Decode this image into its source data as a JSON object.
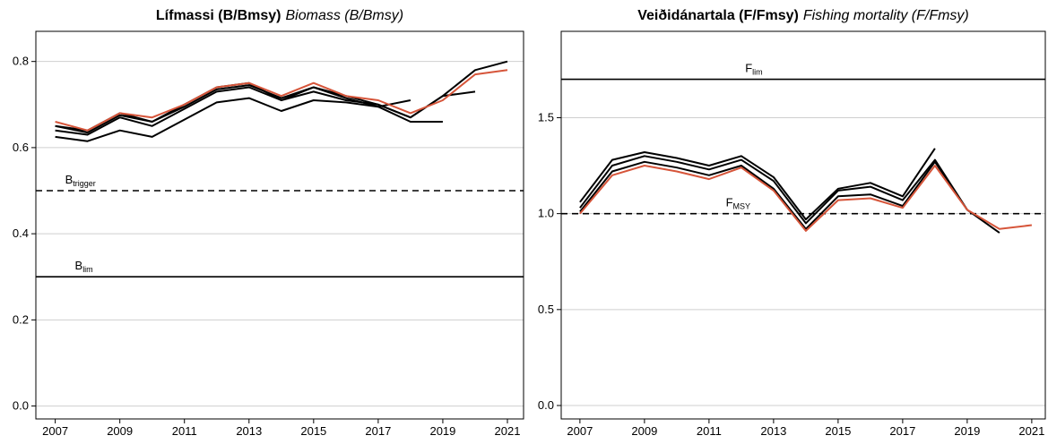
{
  "chart_data": [
    {
      "type": "line",
      "title": "Lífmassi (B/Bmsy)",
      "subtitle": "Biomass (B/Bmsy)",
      "x": [
        2007,
        2008,
        2009,
        2010,
        2011,
        2012,
        2013,
        2014,
        2015,
        2016,
        2017,
        2018,
        2019,
        2020,
        2021
      ],
      "xlim": [
        2006.4,
        2021.5
      ],
      "xticks": [
        2007,
        2009,
        2011,
        2013,
        2015,
        2017,
        2019,
        2021
      ],
      "ylim": [
        -0.03,
        0.87
      ],
      "yticks": [
        {
          "value": 0,
          "label": "0.0"
        },
        0.2,
        0.4,
        0.6,
        0.8
      ],
      "grid": true,
      "series": [
        {
          "color": "#000000",
          "values": [
            0.65,
            0.635,
            0.675,
            0.66,
            0.695,
            0.735,
            0.745,
            0.715,
            0.74,
            0.715,
            0.695,
            0.71,
            null,
            null,
            null
          ]
        },
        {
          "color": "#000000",
          "values": [
            0.625,
            0.615,
            0.64,
            0.625,
            0.665,
            0.705,
            0.715,
            0.685,
            0.71,
            0.705,
            0.695,
            0.66,
            0.66,
            null,
            null
          ]
        },
        {
          "color": "#000000",
          "values": [
            0.64,
            0.63,
            0.67,
            0.65,
            0.69,
            0.73,
            0.74,
            0.71,
            0.73,
            0.71,
            0.7,
            0.67,
            0.72,
            0.73,
            null
          ]
        },
        {
          "color": "#000000",
          "values": [
            0.65,
            0.64,
            0.68,
            0.66,
            0.7,
            0.74,
            0.75,
            0.71,
            0.74,
            0.72,
            0.7,
            0.67,
            0.72,
            0.78,
            0.8
          ]
        },
        {
          "color": "#d6553a",
          "values": [
            0.66,
            0.64,
            0.68,
            0.67,
            0.7,
            0.74,
            0.75,
            0.72,
            0.75,
            0.72,
            0.71,
            0.68,
            0.71,
            0.77,
            0.78
          ]
        }
      ],
      "reference_lines": [
        {
          "label": "B",
          "sub": "trigger",
          "value": 0.5,
          "style": "dashed"
        },
        {
          "label": "B",
          "sub": "lim",
          "value": 0.3,
          "style": "solid"
        }
      ]
    },
    {
      "type": "line",
      "title": "Veiðidánartala (F/Fmsy)",
      "subtitle": "Fishing mortality (F/Fmsy)",
      "x": [
        2007,
        2008,
        2009,
        2010,
        2011,
        2012,
        2013,
        2014,
        2015,
        2016,
        2017,
        2018,
        2019,
        2020,
        2021
      ],
      "xlim": [
        2006.42,
        2021.42
      ],
      "xticks": [
        2007,
        2009,
        2011,
        2013,
        2015,
        2017,
        2019,
        2021
      ],
      "ylim": [
        -0.07,
        1.95
      ],
      "yticks": [
        {
          "value": 0,
          "label": "0.0"
        },
        0.5,
        {
          "value": 1,
          "label": "1.0"
        },
        1.5
      ],
      "grid": true,
      "series": [
        {
          "color": "#000000",
          "values": [
            1.06,
            1.28,
            1.32,
            1.29,
            1.25,
            1.3,
            1.19,
            0.97,
            1.13,
            1.16,
            1.09,
            1.34,
            null,
            null,
            null
          ]
        },
        {
          "color": "#000000",
          "values": [
            1.03,
            1.25,
            1.3,
            1.27,
            1.23,
            1.28,
            1.17,
            0.95,
            1.12,
            1.14,
            1.07,
            1.28,
            1.02,
            null,
            null
          ]
        },
        {
          "color": "#000000",
          "values": [
            1.01,
            1.22,
            1.27,
            1.24,
            1.2,
            1.25,
            1.13,
            0.92,
            1.09,
            1.1,
            1.04,
            1.27,
            1.02,
            0.9,
            null
          ]
        },
        {
          "color": "#d6553a",
          "values": [
            1.0,
            1.2,
            1.25,
            1.22,
            1.18,
            1.24,
            1.12,
            0.91,
            1.07,
            1.08,
            1.03,
            1.25,
            1.02,
            0.92,
            0.94
          ]
        }
      ],
      "reference_lines": [
        {
          "label": "F",
          "sub": "lim",
          "value": 1.7,
          "style": "solid"
        },
        {
          "label": "F",
          "sub": "MSY",
          "value": 1,
          "style": "dashed"
        }
      ]
    }
  ]
}
